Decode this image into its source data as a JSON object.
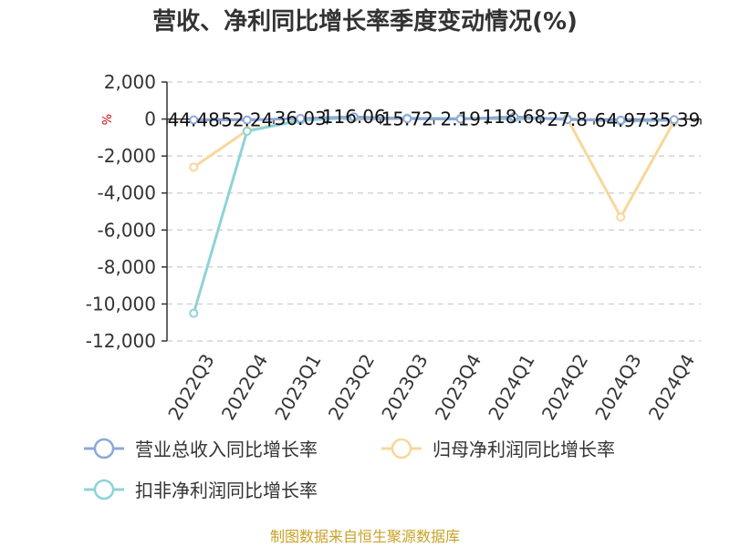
{
  "chart_data": {
    "type": "line",
    "title": "营收、净利同比增长率季度变动情况(%)",
    "unit_label": "%",
    "categories": [
      "2022Q3",
      "2022Q4",
      "2023Q1",
      "2023Q2",
      "2023Q3",
      "2023Q4",
      "2024Q1",
      "2024Q2",
      "2024Q3",
      "2024Q4"
    ],
    "ylim": [
      -12000,
      2000
    ],
    "yticks": [
      2000,
      0,
      -2000,
      -4000,
      -6000,
      -8000,
      -10000,
      -12000
    ],
    "ytick_labels": [
      "2,000",
      "0",
      "-2,000",
      "-4,000",
      "-6,000",
      "-8,000",
      "-10,000",
      "-12,000"
    ],
    "grid": true,
    "legend_position": "bottom",
    "series": [
      {
        "name": "营业总收入同比增长率",
        "color": "#8fa8d8",
        "values": [
          -44.48,
          -52.24,
          36.03,
          116.06,
          15.72,
          -2.19,
          118.68,
          -27.8,
          -64.97,
          -35.39
        ],
        "labels": [
          "44.48",
          "52.24",
          "36.03",
          "116.06",
          "15.72",
          "2.19",
          "118.68",
          "27.8",
          "64.97",
          "35.39"
        ]
      },
      {
        "name": "归母净利润同比增长率",
        "color": "#f8d79a",
        "values": [
          -2600,
          -620,
          -60,
          60,
          40,
          30,
          60,
          20,
          -5300,
          -120
        ]
      },
      {
        "name": "扣非净利润同比增长率",
        "color": "#8ed3d8",
        "values": [
          -10500,
          -660,
          -70,
          70,
          50,
          30,
          50,
          10,
          -120,
          -60
        ]
      }
    ]
  },
  "source_text": "制图数据来自恒生聚源数据库"
}
